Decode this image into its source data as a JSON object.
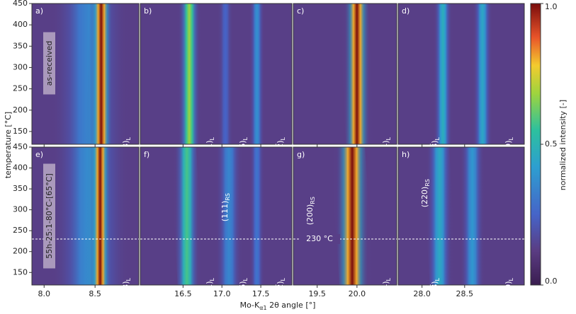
{
  "y_label": "temperature [°C]",
  "x_label": {
    "pre": "Mo-K",
    "sub": "α1",
    "post": " 2θ angle [°]"
  },
  "ylim": [
    120,
    450
  ],
  "yticks": [
    150,
    200,
    250,
    300,
    350,
    400,
    450
  ],
  "row_labels": [
    "as-received",
    "55h-25:1-80°C-[65°C]"
  ],
  "dashed_line": {
    "value": 230,
    "label": "230 °C"
  },
  "colorbar": {
    "label": "normalized intensity [-]",
    "lim": [
      0,
      1
    ],
    "ticks": [
      {
        "value": 0,
        "label": "0.0"
      },
      0.5,
      {
        "value": 1,
        "label": "1.0"
      }
    ]
  },
  "panels": [
    {
      "label": "a)",
      "xlim": [
        7.88,
        8.93
      ],
      "xticks": [
        {
          "value": 8,
          "label": "8.0"
        },
        8.5
      ],
      "annotations": [
        {
          "text": "(003)",
          "sub": "L"
        }
      ],
      "peaks": [
        {
          "x_top": 8.45,
          "x_bottom": 8.44,
          "width": 0.5,
          "intensity": 0.35
        },
        {
          "x_top": 8.58,
          "x_bottom": 8.54,
          "width": 0.13,
          "intensity": 1.0
        }
      ]
    },
    {
      "label": "b)",
      "xlim": [
        15.95,
        17.9
      ],
      "xticks": [
        16.5,
        {
          "value": 17,
          "label": "17.0"
        },
        17.5
      ],
      "annotations": [
        {
          "text": "(101)",
          "sub": "L"
        },
        {
          "text": "(006)",
          "sub": "L"
        },
        {
          "text": "(102̅)",
          "sub": "L"
        }
      ],
      "peaks": [
        {
          "x_top": 16.56,
          "x_bottom": 16.6,
          "width": 0.17,
          "intensity": 0.68
        },
        {
          "x_top": 17.03,
          "x_bottom": 17.06,
          "width": 0.12,
          "intensity": 0.25
        },
        {
          "x_top": 17.44,
          "x_bottom": 17.46,
          "width": 0.12,
          "intensity": 0.38
        }
      ]
    },
    {
      "label": "c)",
      "xlim": [
        19.2,
        20.5
      ],
      "xticks": [
        19.5,
        {
          "value": 20,
          "label": "20.0"
        }
      ],
      "annotations": [
        {
          "text": "(104)",
          "sub": "L"
        }
      ],
      "peaks": [
        {
          "x_top": 19.96,
          "x_bottom": 20.04,
          "width": 0.18,
          "intensity": 1.0
        }
      ]
    },
    {
      "label": "d)",
      "xlim": [
        27.72,
        29.2
      ],
      "xticks": [
        {
          "value": 28,
          "label": "28.0"
        },
        28.5
      ],
      "annotations": [
        {
          "text": "(108̅)",
          "sub": "L"
        },
        {
          "text": "(110)",
          "sub": "L"
        }
      ],
      "peaks": [
        {
          "x_top": 28.24,
          "x_bottom": 28.25,
          "width": 0.14,
          "intensity": 0.48
        },
        {
          "x_top": 28.7,
          "x_bottom": 28.72,
          "width": 0.14,
          "intensity": 0.45
        }
      ]
    },
    {
      "label": "e)",
      "xlim": [
        7.88,
        8.93
      ],
      "xticks": [
        {
          "value": 8,
          "label": "8.0"
        },
        8.5
      ],
      "annotations": [
        {
          "text": "(003)",
          "sub": "L"
        }
      ],
      "peaks": [
        {
          "x_top": 8.46,
          "x_bottom": 8.45,
          "width": 0.5,
          "intensity": 0.38
        },
        {
          "x_top": 8.56,
          "x_bottom": 8.54,
          "width": 0.13,
          "intensity": 1.0
        }
      ]
    },
    {
      "label": "f)",
      "xlim": [
        15.95,
        17.9
      ],
      "xticks": [
        16.5,
        {
          "value": 17,
          "label": "17.0"
        },
        17.5
      ],
      "annotations": [
        {
          "text": "(101)",
          "sub": "L"
        },
        {
          "text": "(006)",
          "sub": "L"
        },
        {
          "text": "(102̅)",
          "sub": "L"
        },
        {
          "text": "(111)",
          "sub": "RS"
        }
      ],
      "peaks": [
        {
          "x_top": 16.5,
          "x_bottom": 16.6,
          "width": 0.17,
          "intensity": 0.58
        },
        {
          "x_top": 17.1,
          "x_bottom": 17.08,
          "width": 0.22,
          "intensity": 0.35
        },
        {
          "x_top": 17.44,
          "x_bottom": 17.46,
          "width": 0.12,
          "intensity": 0.3
        }
      ]
    },
    {
      "label": "g)",
      "xlim": [
        19.2,
        20.5
      ],
      "xticks": [
        19.5,
        {
          "value": 20,
          "label": "20.0"
        }
      ],
      "annotations": [
        {
          "text": "(200)",
          "sub": "RS"
        },
        {
          "text": "(104)",
          "sub": "L"
        }
      ],
      "peaks": [
        {
          "x_top": 19.88,
          "x_bottom": 20.0,
          "width": 0.22,
          "intensity": 1.0
        }
      ]
    },
    {
      "label": "h)",
      "xlim": [
        27.72,
        29.2
      ],
      "xticks": [
        {
          "value": 28,
          "label": "28.0"
        },
        28.5
      ],
      "annotations": [
        {
          "text": "(220)",
          "sub": "RS"
        },
        {
          "text": "(108̅)",
          "sub": "L"
        },
        {
          "text": "(110)",
          "sub": "L"
        }
      ],
      "peaks": [
        {
          "x_top": 28.16,
          "x_bottom": 28.25,
          "width": 0.16,
          "intensity": 0.46
        },
        {
          "x_top": 28.56,
          "x_bottom": 28.62,
          "width": 0.16,
          "intensity": 0.4
        }
      ]
    }
  ]
}
